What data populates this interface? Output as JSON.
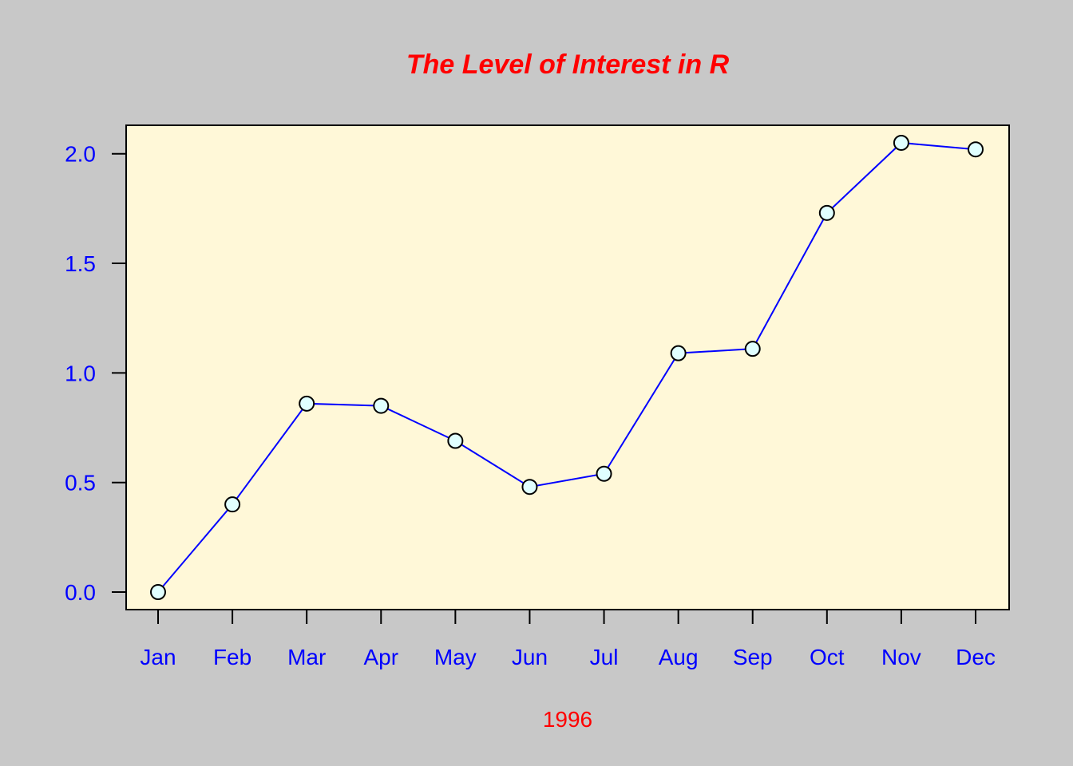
{
  "colors": {
    "page_background": "#c8c8c8",
    "plot_background": "#fff8d8",
    "title": "#ff0000",
    "axis_labels": "#0000ff",
    "xlabel": "#ff0000",
    "line": "#0000ff",
    "marker_fill": "#e0ffff",
    "marker_stroke": "#000000",
    "frame": "#000000"
  },
  "chart_data": {
    "type": "line",
    "title": "The Level of Interest in R",
    "xlabel": "1996",
    "ylabel": "",
    "categories": [
      "Jan",
      "Feb",
      "Mar",
      "Apr",
      "May",
      "Jun",
      "Jul",
      "Aug",
      "Sep",
      "Oct",
      "Nov",
      "Dec"
    ],
    "values": [
      0.0,
      0.4,
      0.86,
      0.85,
      0.69,
      0.48,
      0.54,
      1.09,
      1.11,
      1.73,
      2.05,
      2.02
    ],
    "ylim": [
      -0.08,
      2.13
    ],
    "yticks": [
      "0.0",
      "0.5",
      "1.0",
      "1.5",
      "2.0"
    ],
    "grid": false,
    "legend": "none",
    "markers": "circle"
  }
}
